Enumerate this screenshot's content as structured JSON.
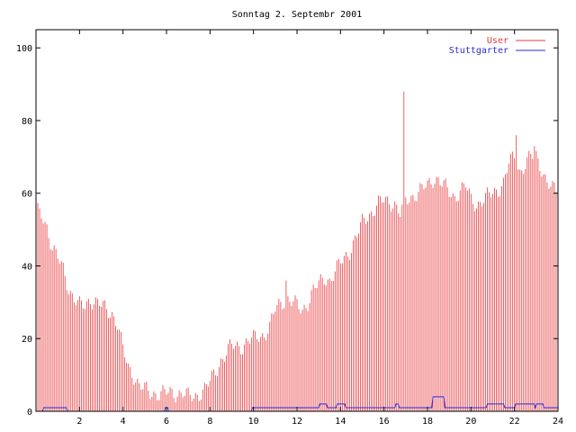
{
  "chart_data": {
    "type": "bar",
    "title": "Sonntag 2. Septembr 2001",
    "xlabel": "",
    "ylabel": "",
    "xlim": [
      0,
      24
    ],
    "ylim": [
      0,
      105
    ],
    "x_ticks": [
      2,
      4,
      6,
      8,
      10,
      12,
      14,
      16,
      18,
      20,
      22,
      24
    ],
    "y_ticks": [
      0,
      20,
      40,
      60,
      80,
      100
    ],
    "grid": false,
    "legend_position": "top-right",
    "series": [
      {
        "name": "User",
        "style": "impulses",
        "color": "#e8393c",
        "anchors": [
          [
            0.0,
            55
          ],
          [
            0.25,
            54
          ],
          [
            0.5,
            51
          ],
          [
            0.75,
            45
          ],
          [
            1.0,
            42
          ],
          [
            1.25,
            39
          ],
          [
            1.5,
            34
          ],
          [
            1.75,
            31
          ],
          [
            2.0,
            29
          ],
          [
            2.25,
            29
          ],
          [
            2.5,
            31
          ],
          [
            2.75,
            30
          ],
          [
            3.0,
            29
          ],
          [
            3.25,
            28
          ],
          [
            3.5,
            27
          ],
          [
            3.75,
            24
          ],
          [
            4.0,
            17
          ],
          [
            4.25,
            12
          ],
          [
            4.5,
            10
          ],
          [
            4.75,
            7
          ],
          [
            5.0,
            6
          ],
          [
            5.25,
            5
          ],
          [
            5.5,
            5
          ],
          [
            5.75,
            5
          ],
          [
            6.0,
            5
          ],
          [
            6.25,
            5
          ],
          [
            6.5,
            5
          ],
          [
            6.75,
            5
          ],
          [
            7.0,
            4
          ],
          [
            7.25,
            4
          ],
          [
            7.5,
            5
          ],
          [
            7.75,
            6
          ],
          [
            8.0,
            8
          ],
          [
            8.25,
            11
          ],
          [
            8.5,
            14
          ],
          [
            8.75,
            16
          ],
          [
            9.0,
            18
          ],
          [
            9.25,
            18
          ],
          [
            9.5,
            18
          ],
          [
            9.75,
            19
          ],
          [
            10.0,
            20
          ],
          [
            10.25,
            21
          ],
          [
            10.5,
            21
          ],
          [
            10.75,
            23
          ],
          [
            11.0,
            28
          ],
          [
            11.25,
            30
          ],
          [
            11.5,
            31
          ],
          [
            11.75,
            30
          ],
          [
            12.0,
            29
          ],
          [
            12.25,
            28
          ],
          [
            12.5,
            30
          ],
          [
            12.75,
            33
          ],
          [
            13.0,
            35
          ],
          [
            13.25,
            37
          ],
          [
            13.5,
            36
          ],
          [
            13.75,
            38
          ],
          [
            14.0,
            41
          ],
          [
            14.25,
            43
          ],
          [
            14.5,
            45
          ],
          [
            14.75,
            48
          ],
          [
            15.0,
            52
          ],
          [
            15.25,
            54
          ],
          [
            15.5,
            55
          ],
          [
            15.75,
            57
          ],
          [
            16.0,
            58
          ],
          [
            16.25,
            58
          ],
          [
            16.5,
            57
          ],
          [
            16.75,
            54
          ],
          [
            17.0,
            58
          ],
          [
            17.25,
            59
          ],
          [
            17.5,
            60
          ],
          [
            17.75,
            61
          ],
          [
            18.0,
            62
          ],
          [
            18.25,
            64
          ],
          [
            18.5,
            64
          ],
          [
            18.75,
            62
          ],
          [
            19.0,
            60
          ],
          [
            19.25,
            59
          ],
          [
            19.5,
            61
          ],
          [
            19.75,
            62
          ],
          [
            20.0,
            58
          ],
          [
            20.25,
            57
          ],
          [
            20.5,
            58
          ],
          [
            20.75,
            59
          ],
          [
            21.0,
            60
          ],
          [
            21.25,
            61
          ],
          [
            21.5,
            63
          ],
          [
            21.75,
            68
          ],
          [
            22.0,
            70
          ],
          [
            22.25,
            66
          ],
          [
            22.5,
            68
          ],
          [
            22.75,
            70
          ],
          [
            23.0,
            70
          ],
          [
            23.25,
            67
          ],
          [
            23.5,
            63
          ],
          [
            23.75,
            61
          ],
          [
            24.0,
            60
          ]
        ],
        "spikes": [
          [
            0.0,
            55
          ],
          [
            11.5,
            36
          ],
          [
            16.95,
            88
          ],
          [
            22.05,
            76
          ],
          [
            22.95,
            73
          ]
        ]
      },
      {
        "name": "Stuttgarter",
        "style": "line",
        "color": "#2b2bd8",
        "points": [
          [
            0.0,
            0
          ],
          [
            0.3,
            0
          ],
          [
            0.35,
            1
          ],
          [
            1.4,
            1
          ],
          [
            1.45,
            0
          ],
          [
            5.9,
            0
          ],
          [
            5.95,
            1
          ],
          [
            6.05,
            1
          ],
          [
            6.1,
            0
          ],
          [
            9.9,
            0
          ],
          [
            9.95,
            1
          ],
          [
            13.0,
            1
          ],
          [
            13.05,
            2
          ],
          [
            13.35,
            2
          ],
          [
            13.4,
            1
          ],
          [
            13.8,
            1
          ],
          [
            13.85,
            2
          ],
          [
            14.2,
            2
          ],
          [
            14.25,
            1
          ],
          [
            16.5,
            1
          ],
          [
            16.55,
            2
          ],
          [
            16.65,
            2
          ],
          [
            16.7,
            1
          ],
          [
            18.2,
            1
          ],
          [
            18.25,
            4
          ],
          [
            18.75,
            4
          ],
          [
            18.8,
            1
          ],
          [
            20.7,
            1
          ],
          [
            20.75,
            2
          ],
          [
            21.5,
            2
          ],
          [
            21.55,
            1
          ],
          [
            22.0,
            1
          ],
          [
            22.05,
            2
          ],
          [
            22.9,
            2
          ],
          [
            22.95,
            1
          ],
          [
            23.0,
            2
          ],
          [
            23.3,
            2
          ],
          [
            23.35,
            1
          ],
          [
            24.0,
            1
          ]
        ]
      }
    ]
  }
}
